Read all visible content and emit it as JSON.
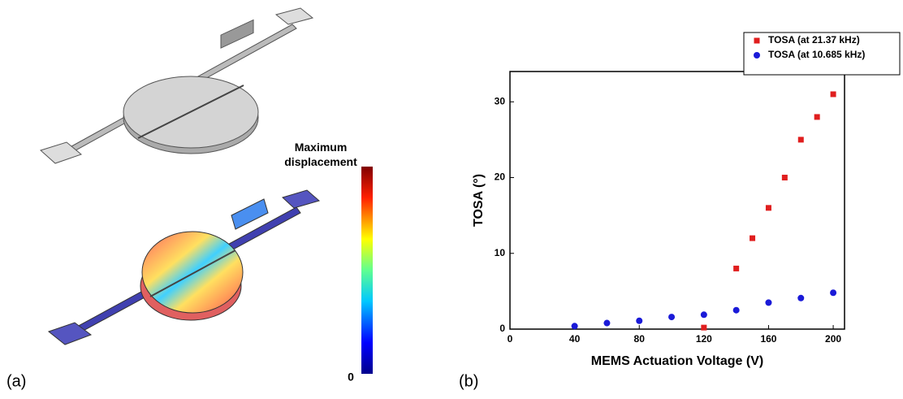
{
  "panel_a": {
    "label": "(a)",
    "colorbar": {
      "title": "Maximum displacement",
      "min_label": "0"
    }
  },
  "panel_b": {
    "label": "(b)"
  },
  "chart_data": {
    "type": "scatter",
    "x_label": "MEMS Actuation Voltage (V)",
    "y_label": "TOSA (°)",
    "xlim": [
      0,
      207
    ],
    "ylim": [
      0,
      34
    ],
    "xticks": [
      0,
      40,
      80,
      120,
      160,
      200
    ],
    "yticks": [
      0,
      10,
      20,
      30
    ],
    "legend": "upper right",
    "series": [
      {
        "name": "TOSA (at 21.37 kHz)",
        "color": "#e01e1e",
        "marker": "square",
        "x": [
          120,
          140,
          150,
          160,
          170,
          180,
          190,
          200
        ],
        "values": [
          0.2,
          8,
          12,
          16,
          20,
          25,
          28,
          31
        ]
      },
      {
        "name": "TOSA (at 10.685 kHz)",
        "color": "#1a1ad8",
        "marker": "circle",
        "x": [
          40,
          60,
          80,
          100,
          120,
          140,
          160,
          180,
          200
        ],
        "values": [
          0.4,
          0.8,
          1.1,
          1.6,
          1.9,
          2.5,
          3.5,
          4.1,
          4.8
        ]
      }
    ]
  }
}
